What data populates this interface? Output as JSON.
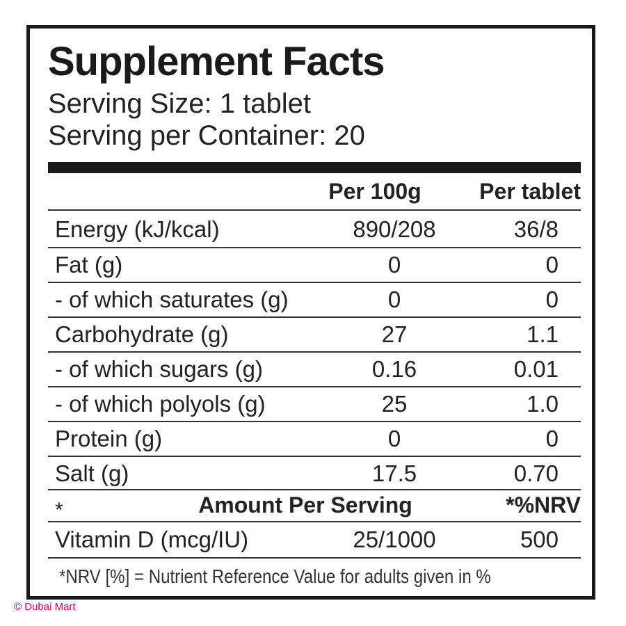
{
  "title": "Supplement Facts",
  "serving_size": "Serving Size: 1 tablet",
  "servings_per_container": "Serving per Container: 20",
  "columns": {
    "per_100g": "Per 100g",
    "per_tablet": "Per tablet"
  },
  "rows": [
    {
      "name": "Energy (kJ/kcal)",
      "per_100g": "890/208",
      "per_tablet": "36/8"
    },
    {
      "name": "Fat (g)",
      "per_100g": "0",
      "per_tablet": "0"
    },
    {
      "name": "- of which saturates (g)",
      "per_100g": "0",
      "per_tablet": "0"
    },
    {
      "name": "Carbohydrate (g)",
      "per_100g": "27",
      "per_tablet": "1.1"
    },
    {
      "name": "- of which sugars (g)",
      "per_100g": "0.16",
      "per_tablet": "0.01"
    },
    {
      "name": "- of which polyols (g)",
      "per_100g": "25",
      "per_tablet": "1.0"
    },
    {
      "name": "Protein (g)",
      "per_100g": "0",
      "per_tablet": "0"
    },
    {
      "name": "Salt (g)",
      "per_100g": "17.5",
      "per_tablet": "0.70"
    }
  ],
  "vitamin_header": {
    "marker": "*",
    "amount": "Amount Per Serving",
    "nrv": "*%NRV"
  },
  "vitamin_rows": [
    {
      "name": "Vitamin D (mcg/IU)",
      "amount": "25/1000",
      "nrv": "500"
    }
  ],
  "footnote": "*NRV [%] = Nutrient Reference Value for adults given in %",
  "watermark": "© Dubai Mart"
}
